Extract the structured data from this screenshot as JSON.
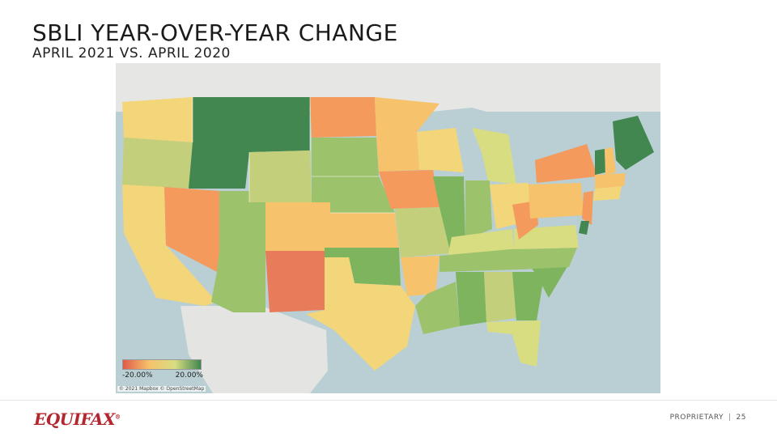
{
  "header": {
    "title": "SBLI YEAR-OVER-YEAR CHANGE",
    "subtitle": "APRIL 2021 VS. APRIL 2020"
  },
  "colors": {
    "strong_negative": "#e0594a",
    "negative": "#f49a5c",
    "slight_negative": "#f6c26b",
    "neutral": "#f3d57a",
    "slight_positive": "#d9dd82",
    "positive": "#9cc26b",
    "strong_positive": "#41874f"
  },
  "map": {
    "legend": {
      "min_label": "-20.00%",
      "max_label": "20.00%"
    },
    "attribution": "© 2021 Mapbox © OpenStreetMap"
  },
  "footer": {
    "logo": "EQUIFAX",
    "logo_mark": "®",
    "proprietary": "PROPRIETARY",
    "separator": "|",
    "page_number": "25"
  }
}
